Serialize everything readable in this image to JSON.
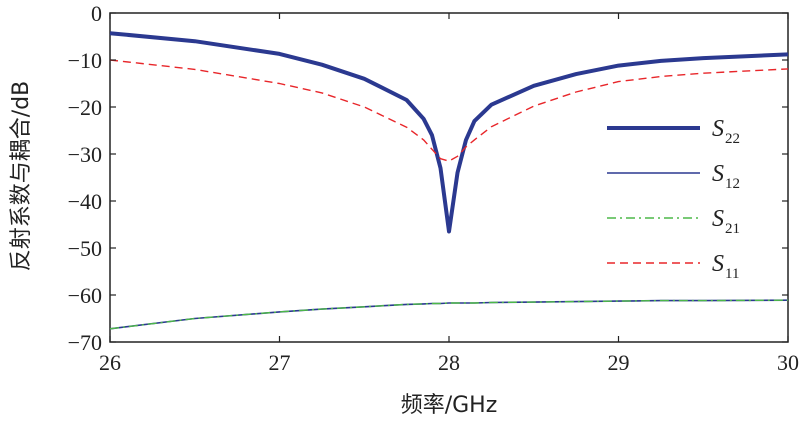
{
  "chart_data": {
    "type": "line",
    "title": "",
    "xlabel": "频率/GHz",
    "ylabel": "反射系数与耦合/dB",
    "xlim": [
      26,
      30
    ],
    "ylim": [
      -70,
      0
    ],
    "xticks": [
      26,
      27,
      28,
      29,
      30
    ],
    "yticks": [
      0,
      -10,
      -20,
      -30,
      -40,
      -50,
      -60,
      -70
    ],
    "ytick_labels": [
      "0",
      "−10",
      "−20",
      "−30",
      "−40",
      "−50",
      "−60",
      "−70"
    ],
    "grid": false,
    "legend_position": "right",
    "x": [
      26.0,
      26.5,
      27.0,
      27.25,
      27.5,
      27.75,
      27.85,
      27.9,
      27.95,
      28.0,
      28.05,
      28.1,
      28.15,
      28.25,
      28.5,
      28.75,
      29.0,
      29.25,
      29.5,
      30.0
    ],
    "series": [
      {
        "name": "S22",
        "label_main": "S",
        "label_sub": "22",
        "style": "thick-solid",
        "color": "#2b3990",
        "values": [
          -4.3,
          -6.0,
          -8.7,
          -11.0,
          -14.0,
          -18.5,
          -22.5,
          -26.0,
          -33.0,
          -46.5,
          -34.0,
          -27.0,
          -23.0,
          -19.5,
          -15.5,
          -13.0,
          -11.2,
          -10.2,
          -9.6,
          -8.8
        ]
      },
      {
        "name": "S12",
        "label_main": "S",
        "label_sub": "12",
        "style": "thin-solid",
        "color": "#2b3990",
        "values": [
          -67.2,
          -65.0,
          -63.6,
          -63.0,
          -62.5,
          -62.0,
          -61.9,
          -61.8,
          -61.8,
          -61.7,
          -61.7,
          -61.7,
          -61.7,
          -61.6,
          -61.5,
          -61.4,
          -61.3,
          -61.2,
          -61.2,
          -61.1
        ]
      },
      {
        "name": "S21",
        "label_main": "S",
        "label_sub": "21",
        "style": "dash-dot",
        "color": "#4db848",
        "values": [
          -67.2,
          -65.0,
          -63.6,
          -63.0,
          -62.5,
          -62.0,
          -61.9,
          -61.8,
          -61.8,
          -61.7,
          -61.7,
          -61.7,
          -61.7,
          -61.6,
          -61.5,
          -61.4,
          -61.3,
          -61.2,
          -61.2,
          -61.1
        ]
      },
      {
        "name": "S11",
        "label_main": "S",
        "label_sub": "11",
        "style": "dashed",
        "color": "#e8262a",
        "values": [
          -10.0,
          -12.0,
          -15.0,
          -17.0,
          -20.0,
          -24.3,
          -27.0,
          -29.0,
          -31.0,
          -31.5,
          -30.5,
          -28.5,
          -27.0,
          -24.2,
          -19.8,
          -16.8,
          -14.6,
          -13.5,
          -12.8,
          -11.9
        ]
      }
    ]
  }
}
